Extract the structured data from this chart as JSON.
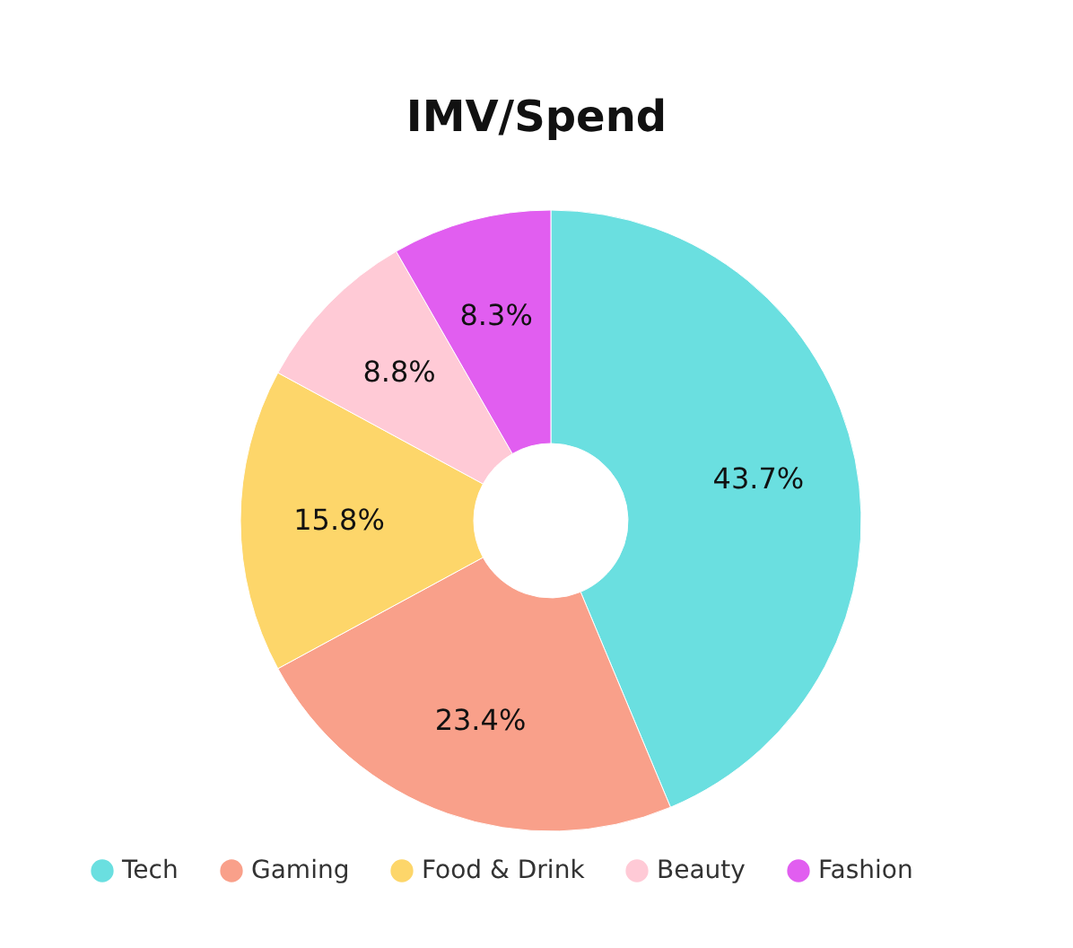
{
  "chart_data": {
    "type": "donut",
    "title": "IMV/Spend",
    "categories": [
      "Tech",
      "Gaming",
      "Food & Drink",
      "Beauty",
      "Fashion"
    ],
    "values": [
      43.7,
      23.4,
      15.8,
      8.8,
      8.3
    ],
    "value_labels": [
      "43.7%",
      "23.4%",
      "15.8%",
      "8.8%",
      "8.3%"
    ],
    "colors": [
      "#6adfe0",
      "#f9a08a",
      "#fdd66a",
      "#ffcad6",
      "#e15ef0"
    ],
    "legend": "bottom"
  }
}
